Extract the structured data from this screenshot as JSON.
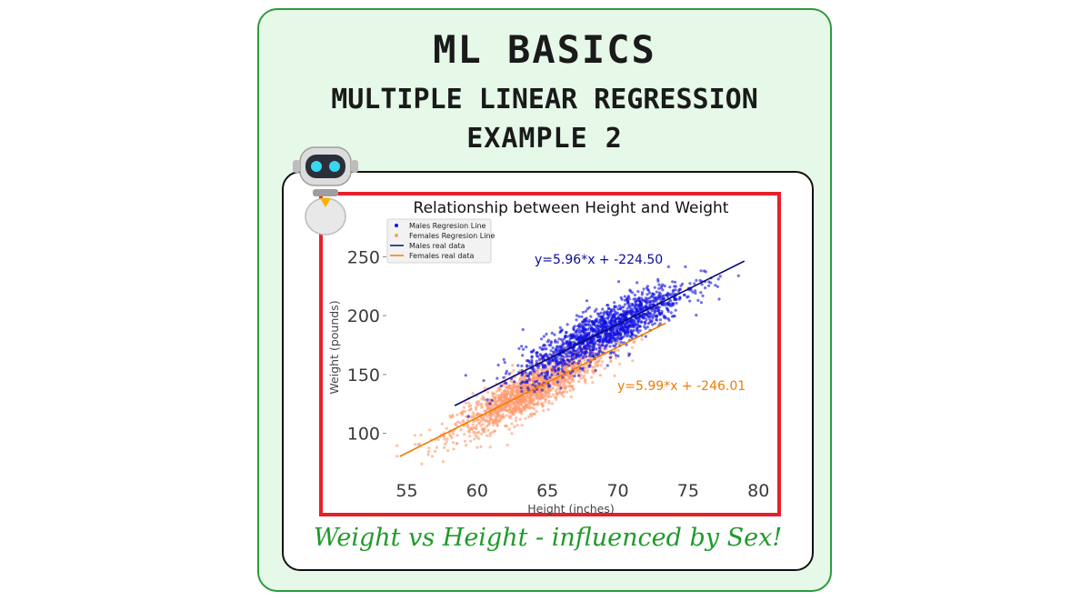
{
  "header": {
    "line1": "ML BASICS",
    "line2": "MULTIPLE LINEAR REGRESSION",
    "line3": "EXAMPLE 2"
  },
  "caption": "Weight vs Height - influenced by Sex!",
  "colors": {
    "outer_bg": "#e6f9e9",
    "outer_border": "#2e9a3c",
    "frame": "#e5202a",
    "caption": "#1f9a2a",
    "males_points": "#1010e0",
    "females_points": "#ff9a6e",
    "males_line": "#0a0a7a",
    "females_line": "#f07d00"
  },
  "icons": {
    "mascot": "robot-icon"
  },
  "chart_data": {
    "type": "scatter",
    "title": "Relationship between Height and Weight",
    "xlabel": "Height (inches)",
    "ylabel": "Weight (pounds)",
    "xlim": [
      54,
      80.5
    ],
    "ylim": [
      65,
      275
    ],
    "xticks": [
      55,
      60,
      65,
      70,
      75,
      80
    ],
    "yticks": [
      100,
      150,
      200,
      250
    ],
    "grid": false,
    "legend_position": "top-left",
    "legend": [
      {
        "label": "Males Regresion Line",
        "kind": "marker",
        "color": "#1010e0"
      },
      {
        "label": "Females Regresion Line",
        "kind": "marker",
        "color": "#ff9a6e"
      },
      {
        "label": "Males real data",
        "kind": "line",
        "color": "#0a0a7a"
      },
      {
        "label": "Females real data",
        "kind": "line",
        "color": "#f07d00"
      }
    ],
    "series": [
      {
        "name": "Males",
        "kind": "scatter",
        "slope": 5.96,
        "intercept": -224.5,
        "x_mean": 69.0,
        "x_sd": 2.9,
        "x_range": [
          58.4,
          79.0
        ],
        "residual_sd": 10.0,
        "count": 1500,
        "color": "#1010e0"
      },
      {
        "name": "Females",
        "kind": "scatter",
        "slope": 5.99,
        "intercept": -246.01,
        "x_mean": 63.7,
        "x_sd": 2.7,
        "x_range": [
          54.3,
          73.4
        ],
        "residual_sd": 9.0,
        "count": 1500,
        "color": "#ff9a6e"
      }
    ],
    "lines": [
      {
        "name": "Males",
        "slope": 5.96,
        "intercept": -224.5,
        "x": [
          58.4,
          79.0
        ],
        "color": "#0a0a7a"
      },
      {
        "name": "Females",
        "slope": 5.99,
        "intercept": -246.01,
        "x": [
          54.5,
          73.4
        ],
        "color": "#f07d00"
      }
    ],
    "annotations": [
      {
        "text": "y=5.96*x + -224.50",
        "color": "#0a0a9a",
        "near": "males-line-upper"
      },
      {
        "text": "y=5.99*x + -246.01",
        "color": "#f07d00",
        "near": "females-line-right"
      }
    ]
  }
}
